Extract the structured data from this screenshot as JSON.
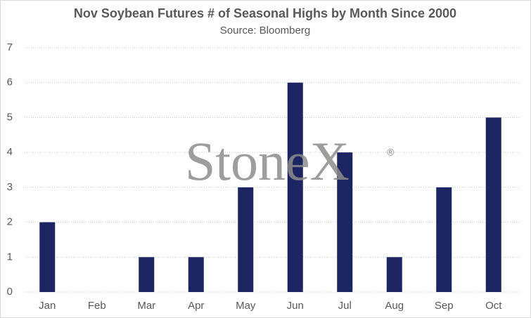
{
  "chart_data": {
    "type": "bar",
    "title": "Nov Soybean Futures # of Seasonal Highs by Month Since 2000",
    "subtitle": "Source: Bloomberg",
    "watermark": "StoneX",
    "watermark_mark": "®",
    "categories": [
      "Jan",
      "Feb",
      "Mar",
      "Apr",
      "May",
      "Jun",
      "Jul",
      "Aug",
      "Sep",
      "Oct"
    ],
    "values": [
      2,
      0,
      1,
      1,
      3,
      6,
      4,
      1,
      3,
      5
    ],
    "color": "#1c2461",
    "ylim": [
      0,
      7
    ],
    "yticks": [
      0,
      1,
      2,
      3,
      4,
      5,
      6,
      7
    ],
    "grid": true
  }
}
